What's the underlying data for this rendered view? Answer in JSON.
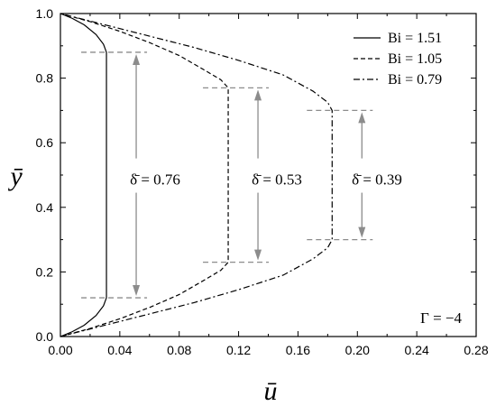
{
  "chart_data": {
    "type": "line",
    "xlabel": "ū",
    "ylabel": "ȳ",
    "xlim": [
      0,
      0.28
    ],
    "ylim": [
      0,
      1.0
    ],
    "xticks": [
      "0.00",
      "0.04",
      "0.08",
      "0.12",
      "0.16",
      "0.20",
      "0.24",
      "0.28"
    ],
    "yticks": [
      "0.0",
      "0.2",
      "0.4",
      "0.6",
      "0.8",
      "1.0"
    ],
    "legend_position": "top-right",
    "series": [
      {
        "name": "Bi = 1.51",
        "style": "solid",
        "plug_u": 0.031,
        "y_low": 0.12,
        "y_high": 0.88,
        "points": [
          [
            0,
            0
          ],
          [
            0.008,
            0.015
          ],
          [
            0.016,
            0.035
          ],
          [
            0.024,
            0.065
          ],
          [
            0.029,
            0.095
          ],
          [
            0.031,
            0.12
          ],
          [
            0.031,
            0.88
          ],
          [
            0.029,
            0.905
          ],
          [
            0.024,
            0.935
          ],
          [
            0.016,
            0.965
          ],
          [
            0.008,
            0.985
          ],
          [
            0,
            1
          ]
        ]
      },
      {
        "name": "Bi = 1.05",
        "style": "dashed",
        "plug_u": 0.113,
        "y_low": 0.23,
        "y_high": 0.77,
        "points": [
          [
            0,
            0
          ],
          [
            0.02,
            0.025
          ],
          [
            0.04,
            0.055
          ],
          [
            0.06,
            0.09
          ],
          [
            0.08,
            0.13
          ],
          [
            0.097,
            0.175
          ],
          [
            0.108,
            0.205
          ],
          [
            0.113,
            0.23
          ],
          [
            0.113,
            0.77
          ],
          [
            0.108,
            0.795
          ],
          [
            0.097,
            0.825
          ],
          [
            0.08,
            0.87
          ],
          [
            0.06,
            0.91
          ],
          [
            0.04,
            0.945
          ],
          [
            0.02,
            0.975
          ],
          [
            0,
            1
          ]
        ]
      },
      {
        "name": "Bi = 0.79",
        "style": "dashdot",
        "plug_u": 0.183,
        "y_low": 0.3,
        "y_high": 0.7,
        "points": [
          [
            0,
            0
          ],
          [
            0.03,
            0.035
          ],
          [
            0.06,
            0.07
          ],
          [
            0.09,
            0.105
          ],
          [
            0.12,
            0.145
          ],
          [
            0.15,
            0.19
          ],
          [
            0.17,
            0.24
          ],
          [
            0.18,
            0.275
          ],
          [
            0.183,
            0.3
          ],
          [
            0.183,
            0.7
          ],
          [
            0.18,
            0.725
          ],
          [
            0.17,
            0.76
          ],
          [
            0.15,
            0.81
          ],
          [
            0.12,
            0.855
          ],
          [
            0.09,
            0.895
          ],
          [
            0.06,
            0.93
          ],
          [
            0.03,
            0.965
          ],
          [
            0,
            1
          ]
        ]
      }
    ],
    "annotations": [
      {
        "label": "δ̄ = 0.76",
        "value": 0.76
      },
      {
        "label": "δ̄ = 0.53",
        "value": 0.53
      },
      {
        "label": "δ̄ = 0.39",
        "value": 0.39
      },
      {
        "label": "Γ = −4"
      }
    ]
  }
}
